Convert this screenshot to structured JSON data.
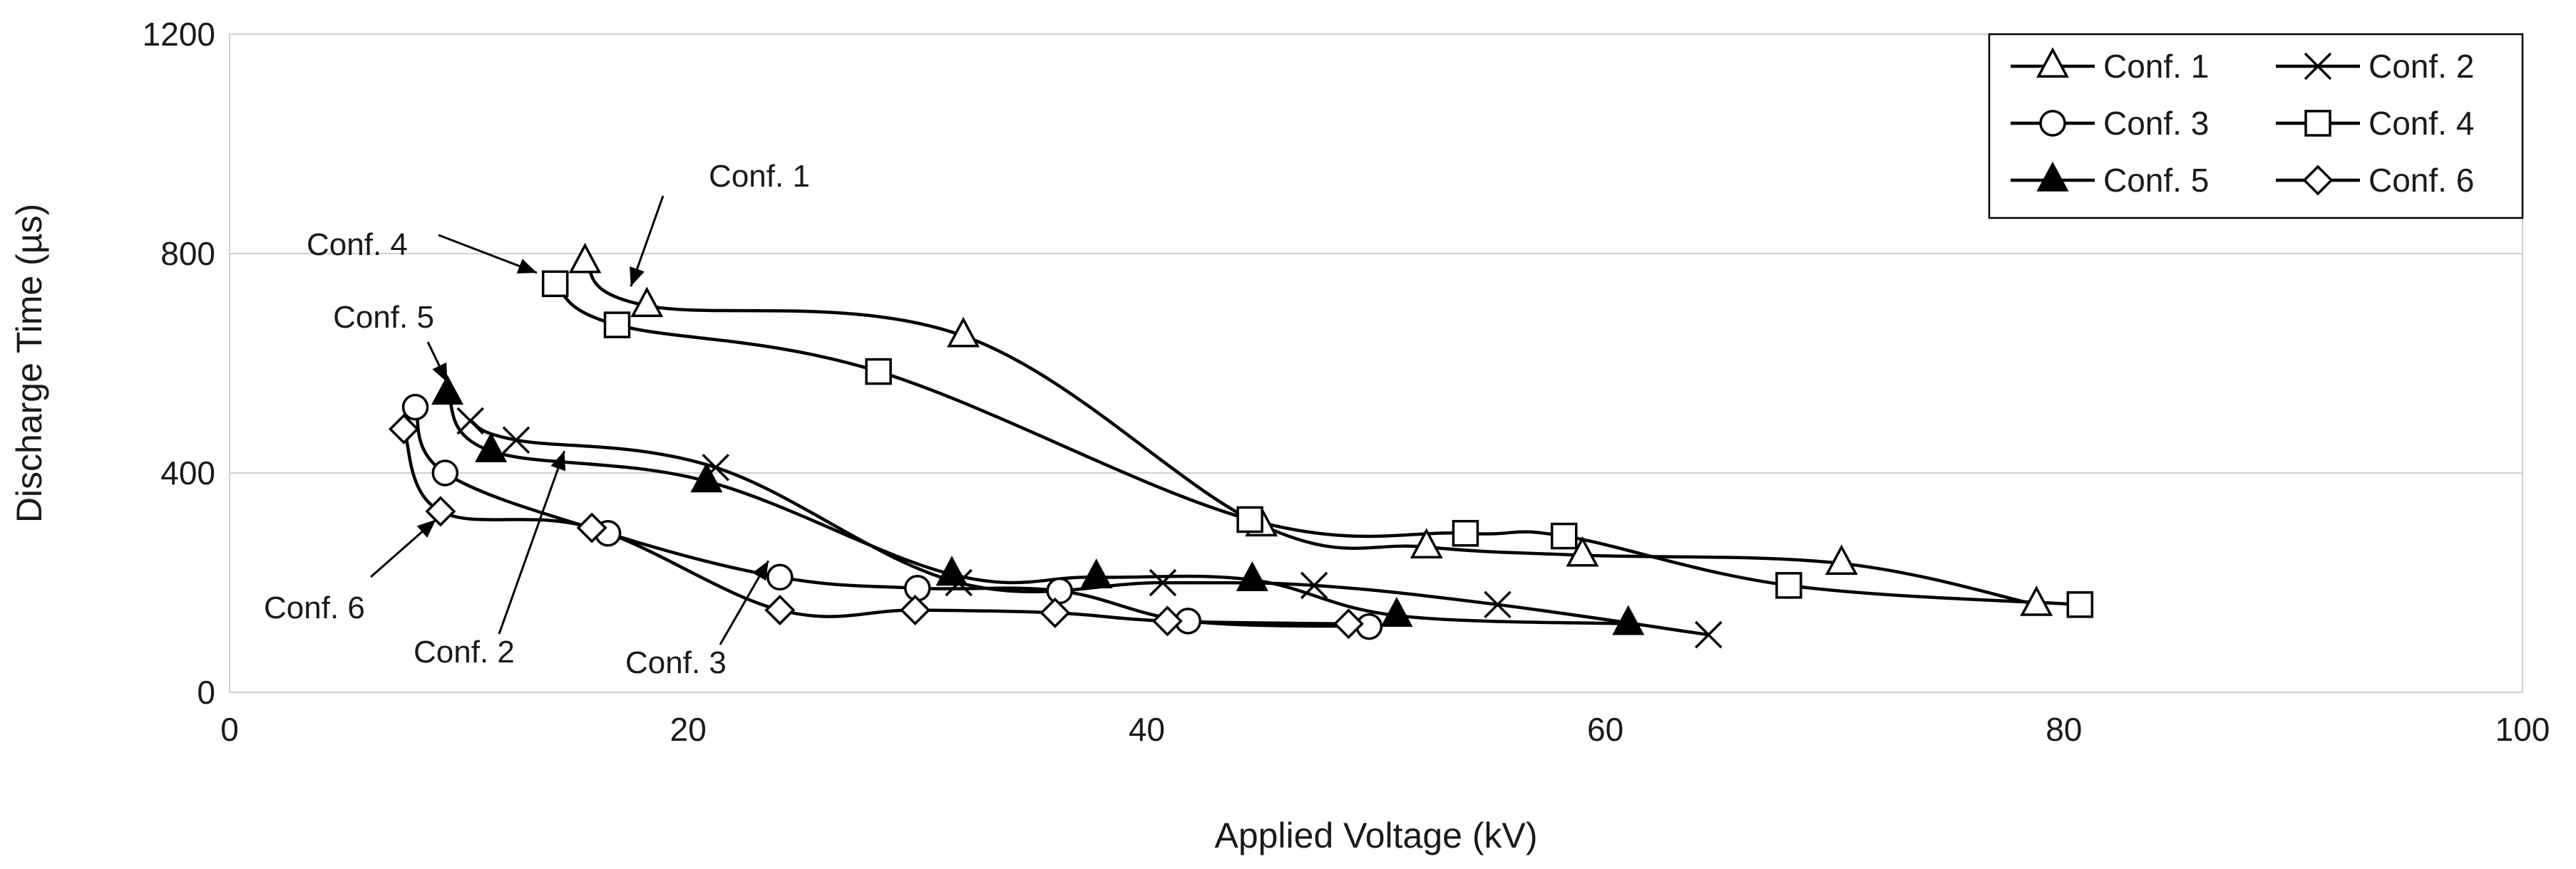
{
  "chart_data": {
    "type": "line",
    "title": "",
    "xlabel": "Applied Voltage (kV)",
    "ylabel": "Discharge Time (µs)",
    "xlim": [
      0,
      100
    ],
    "ylim": [
      0,
      1200
    ],
    "xticks": [
      0,
      20,
      40,
      60,
      80,
      100
    ],
    "yticks": [
      0,
      400,
      800,
      1200
    ],
    "grid": "horizontal",
    "legend_position": "top-right",
    "series": [
      {
        "name": "Conf. 1",
        "marker": "triangle-open",
        "x": [
          15.5,
          18.2,
          32.0,
          45.0,
          52.2,
          59.0,
          70.3,
          78.8
        ],
        "y": [
          785,
          705,
          650,
          305,
          265,
          250,
          235,
          160
        ]
      },
      {
        "name": "Conf. 2",
        "marker": "cross",
        "x": [
          10.5,
          12.5,
          21.2,
          31.8,
          40.7,
          47.3,
          55.3,
          64.5
        ],
        "y": [
          495,
          460,
          410,
          200,
          200,
          195,
          160,
          105
        ]
      },
      {
        "name": "Conf. 3",
        "marker": "circle-open",
        "x": [
          8.1,
          9.4,
          16.5,
          24.0,
          30.0,
          36.2,
          41.8,
          49.7
        ],
        "y": [
          520,
          400,
          290,
          210,
          190,
          185,
          130,
          120
        ]
      },
      {
        "name": "Conf. 4",
        "marker": "square-open",
        "x": [
          14.2,
          16.9,
          28.3,
          44.5,
          53.9,
          58.2,
          68.0,
          80.7
        ],
        "y": [
          745,
          670,
          585,
          315,
          290,
          285,
          195,
          160
        ]
      },
      {
        "name": "Conf. 5",
        "marker": "triangle-filled",
        "x": [
          9.5,
          11.4,
          20.8,
          31.5,
          37.8,
          44.6,
          50.9,
          61.0
        ],
        "y": [
          545,
          440,
          385,
          215,
          210,
          205,
          140,
          125
        ]
      },
      {
        "name": "Conf. 6",
        "marker": "diamond-open",
        "x": [
          7.6,
          9.2,
          15.8,
          24.0,
          29.9,
          36.0,
          40.9,
          48.8
        ],
        "y": [
          480,
          330,
          300,
          150,
          150,
          145,
          130,
          125
        ]
      }
    ],
    "annotations": [
      {
        "text": "Conf. 1",
        "target": [
          17.5,
          740
        ]
      },
      {
        "text": "Conf. 4",
        "target": [
          13.4,
          765
        ]
      },
      {
        "text": "Conf. 5",
        "target": [
          9.5,
          565
        ]
      },
      {
        "text": "Conf. 6",
        "target": [
          9.0,
          315
        ]
      },
      {
        "text": "Conf. 2",
        "target": [
          14.6,
          440
        ]
      },
      {
        "text": "Conf. 3",
        "target": [
          23.5,
          240
        ]
      }
    ]
  }
}
